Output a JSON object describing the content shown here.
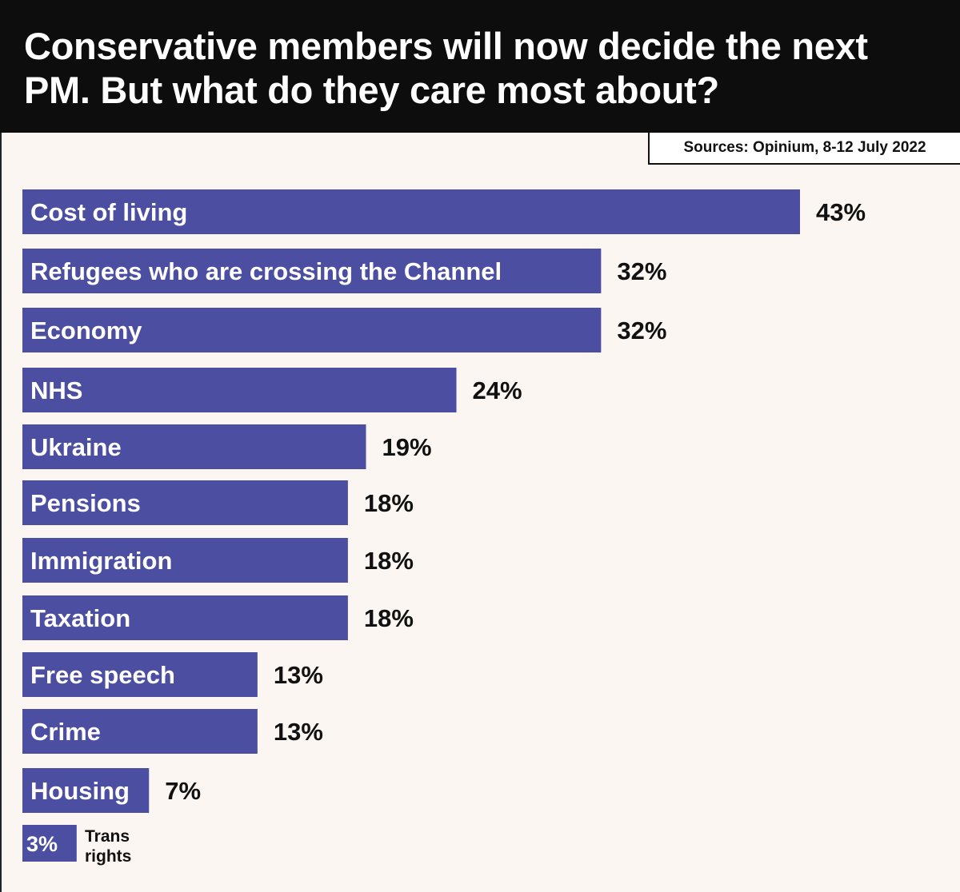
{
  "title": "Conservative members will now decide the next PM. But what do they care most about?",
  "source": "Sources: Opinium, 8-12 July 2022",
  "colors": {
    "bar": "#4b4ea1",
    "bar_text": "#ffffff",
    "value_text": "#111111",
    "header_bg": "#0d0d0d",
    "background": "#fbf6f2"
  },
  "chart_data": {
    "type": "bar",
    "orientation": "horizontal",
    "title": "Conservative members will now decide the next PM. But what do they care most about?",
    "categories": [
      "Cost of living",
      "Refugees who are crossing the Channel",
      "Economy",
      "NHS",
      "Ukraine",
      "Pensions",
      "Immigration",
      "Taxation",
      "Free speech",
      "Crime",
      "Housing",
      "Trans rights"
    ],
    "values": [
      43,
      32,
      32,
      24,
      19,
      18,
      18,
      18,
      13,
      13,
      7,
      3
    ],
    "value_labels": [
      "43%",
      "32%",
      "32%",
      "24%",
      "19%",
      "18%",
      "18%",
      "18%",
      "13%",
      "13%",
      "7%",
      "3%"
    ],
    "unit": "%",
    "xlim": [
      0,
      43
    ],
    "grid": false,
    "legend": "none"
  }
}
